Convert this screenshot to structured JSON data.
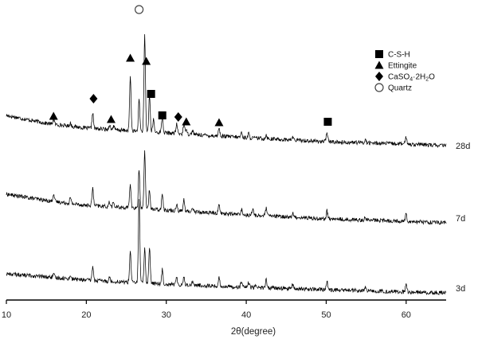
{
  "chart_data": {
    "type": "line",
    "title": "",
    "xlabel": "2θ(degree)",
    "ylabel": "",
    "xlim": [
      10,
      65
    ],
    "x_ticks": [
      10,
      20,
      30,
      40,
      50,
      60
    ],
    "grid": false,
    "legend_position": "top-right",
    "legend": [
      {
        "marker": "square",
        "label": "C-S-H"
      },
      {
        "marker": "triangle",
        "label": "Ettingite"
      },
      {
        "marker": "diamond",
        "label": "CaSO",
        "sub1": "4",
        "mid": "·2H",
        "sub2": "2",
        "end": "O"
      },
      {
        "marker": "circle",
        "label": "Quartz"
      }
    ],
    "series": [
      {
        "name": "28d",
        "baseline": [
          [
            10,
            40
          ],
          [
            15,
            30
          ],
          [
            20,
            24
          ],
          [
            30,
            18
          ],
          [
            40,
            12
          ],
          [
            50,
            7
          ],
          [
            60,
            4
          ],
          [
            65,
            2
          ]
        ],
        "peaks": [
          [
            15.9,
            7
          ],
          [
            18.0,
            4
          ],
          [
            20.8,
            20
          ],
          [
            22.9,
            6
          ],
          [
            23.4,
            5
          ],
          [
            25.5,
            68
          ],
          [
            26.6,
            40
          ],
          [
            27.3,
            120
          ],
          [
            27.9,
            46
          ],
          [
            28.4,
            16
          ],
          [
            29.5,
            20
          ],
          [
            31.3,
            12
          ],
          [
            32.2,
            12
          ],
          [
            32.5,
            8
          ],
          [
            33.3,
            5
          ],
          [
            36.6,
            10
          ],
          [
            39.4,
            6
          ],
          [
            40.3,
            5
          ],
          [
            42.5,
            5
          ],
          [
            45.8,
            4
          ],
          [
            50.1,
            12
          ],
          [
            54.9,
            4
          ],
          [
            60.0,
            9
          ]
        ]
      },
      {
        "name": "7d",
        "baseline": [
          [
            10,
            38
          ],
          [
            15,
            30
          ],
          [
            20,
            24
          ],
          [
            30,
            18
          ],
          [
            40,
            12
          ],
          [
            50,
            7
          ],
          [
            60,
            4
          ],
          [
            65,
            2
          ]
        ],
        "peaks": [
          [
            15.9,
            10
          ],
          [
            18.0,
            7
          ],
          [
            20.8,
            22
          ],
          [
            22.9,
            6
          ],
          [
            23.4,
            6
          ],
          [
            25.5,
            30
          ],
          [
            26.6,
            50
          ],
          [
            27.3,
            72
          ],
          [
            27.9,
            24
          ],
          [
            29.5,
            22
          ],
          [
            31.3,
            9
          ],
          [
            32.2,
            14
          ],
          [
            33.3,
            5
          ],
          [
            36.6,
            12
          ],
          [
            39.4,
            7
          ],
          [
            40.8,
            8
          ],
          [
            42.5,
            10
          ],
          [
            45.8,
            5
          ],
          [
            50.1,
            10
          ],
          [
            54.9,
            4
          ],
          [
            60.0,
            10
          ]
        ]
      },
      {
        "name": "3d",
        "baseline": [
          [
            10,
            26
          ],
          [
            15,
            22
          ],
          [
            20,
            18
          ],
          [
            30,
            13
          ],
          [
            40,
            9
          ],
          [
            50,
            6
          ],
          [
            60,
            3
          ],
          [
            65,
            2
          ]
        ],
        "peaks": [
          [
            15.9,
            4
          ],
          [
            18.0,
            4
          ],
          [
            20.8,
            18
          ],
          [
            22.9,
            5
          ],
          [
            25.5,
            40
          ],
          [
            26.6,
            105
          ],
          [
            27.3,
            44
          ],
          [
            27.9,
            45
          ],
          [
            29.5,
            18
          ],
          [
            31.3,
            8
          ],
          [
            32.2,
            10
          ],
          [
            33.3,
            5
          ],
          [
            36.6,
            10
          ],
          [
            39.4,
            7
          ],
          [
            40.3,
            6
          ],
          [
            41.2,
            5
          ],
          [
            42.5,
            10
          ],
          [
            45.8,
            5
          ],
          [
            50.1,
            10
          ],
          [
            54.9,
            4
          ],
          [
            60.0,
            9
          ]
        ]
      }
    ],
    "annotations": [
      {
        "marker": "circle",
        "x": 26.6,
        "series": "28d",
        "phase": "Quartz"
      },
      {
        "marker": "triangle",
        "x": 25.5,
        "series": "28d",
        "phase": "Ettingite"
      },
      {
        "marker": "triangle",
        "x": 27.5,
        "series": "28d",
        "phase": "Ettingite"
      },
      {
        "marker": "square",
        "x": 28.1,
        "series": "28d",
        "phase": "C-S-H"
      },
      {
        "marker": "square",
        "x": 29.5,
        "series": "28d",
        "phase": "C-S-H"
      },
      {
        "marker": "square",
        "x": 50.2,
        "series": "28d",
        "phase": "C-S-H"
      },
      {
        "marker": "diamond",
        "x": 20.9,
        "series": "28d",
        "phase": "CaSO4·2H2O"
      },
      {
        "marker": "diamond",
        "x": 31.5,
        "series": "28d",
        "phase": "CaSO4·2H2O"
      },
      {
        "marker": "triangle",
        "x": 15.9,
        "series": "28d",
        "phase": "Ettingite"
      },
      {
        "marker": "triangle",
        "x": 23.1,
        "series": "28d",
        "phase": "Ettingite"
      },
      {
        "marker": "triangle",
        "x": 32.5,
        "series": "28d",
        "phase": "Ettingite"
      },
      {
        "marker": "triangle",
        "x": 36.6,
        "series": "28d",
        "phase": "Ettingite"
      }
    ]
  }
}
